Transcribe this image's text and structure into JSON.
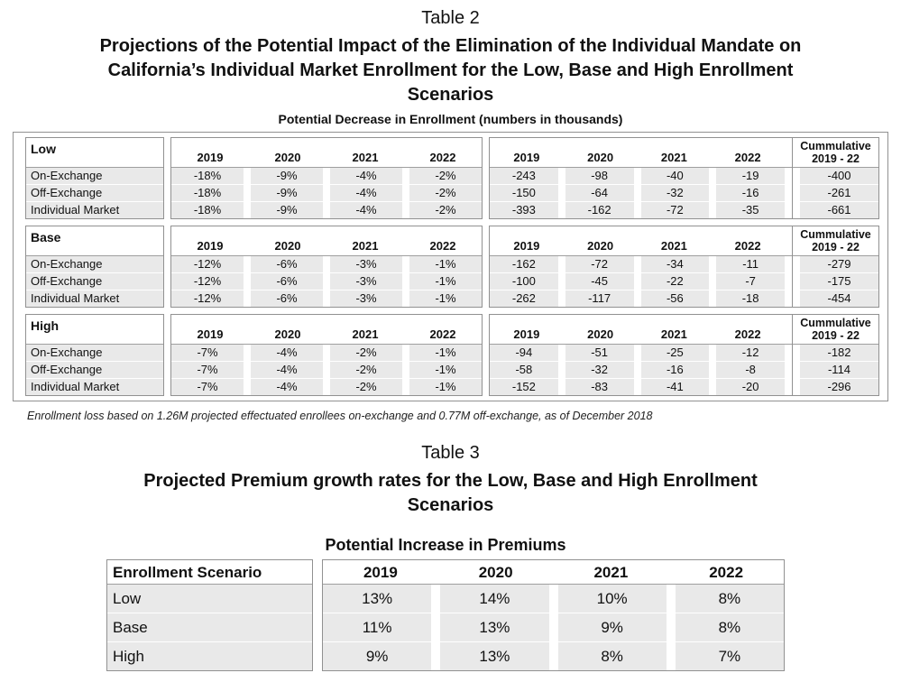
{
  "colors": {
    "row_fill": "#e9e9e9",
    "border": "#919191",
    "text": "#111111"
  },
  "table2": {
    "caption": "Table 2",
    "title_lines": [
      "Projections of the Potential Impact of the Elimination of the Individual Mandate on",
      "California’s Individual Market Enrollment for the Low, Base and High Enrollment",
      "Scenarios"
    ],
    "subtitle": "Potential Decrease in Enrollment (numbers in thousands)",
    "years": [
      "2019",
      "2020",
      "2021",
      "2022"
    ],
    "cumulative_header": {
      "line1": "Cummulative",
      "line2": "2019 - 22"
    },
    "scenarios": [
      {
        "name": "Low",
        "rows": [
          {
            "label": "On-Exchange",
            "pct": [
              "-18%",
              "-9%",
              "-4%",
              "-2%"
            ],
            "num": [
              "-243",
              "-98",
              "-40",
              "-19"
            ],
            "cum": "-400"
          },
          {
            "label": "Off-Exchange",
            "pct": [
              "-18%",
              "-9%",
              "-4%",
              "-2%"
            ],
            "num": [
              "-150",
              "-64",
              "-32",
              "-16"
            ],
            "cum": "-261"
          },
          {
            "label": "Individual Market",
            "pct": [
              "-18%",
              "-9%",
              "-4%",
              "-2%"
            ],
            "num": [
              "-393",
              "-162",
              "-72",
              "-35"
            ],
            "cum": "-661"
          }
        ]
      },
      {
        "name": "Base",
        "rows": [
          {
            "label": "On-Exchange",
            "pct": [
              "-12%",
              "-6%",
              "-3%",
              "-1%"
            ],
            "num": [
              "-162",
              "-72",
              "-34",
              "-11"
            ],
            "cum": "-279"
          },
          {
            "label": "Off-Exchange",
            "pct": [
              "-12%",
              "-6%",
              "-3%",
              "-1%"
            ],
            "num": [
              "-100",
              "-45",
              "-22",
              "-7"
            ],
            "cum": "-175"
          },
          {
            "label": "Individual Market",
            "pct": [
              "-12%",
              "-6%",
              "-3%",
              "-1%"
            ],
            "num": [
              "-262",
              "-117",
              "-56",
              "-18"
            ],
            "cum": "-454"
          }
        ]
      },
      {
        "name": "High",
        "rows": [
          {
            "label": "On-Exchange",
            "pct": [
              "-7%",
              "-4%",
              "-2%",
              "-1%"
            ],
            "num": [
              "-94",
              "-51",
              "-25",
              "-12"
            ],
            "cum": "-182"
          },
          {
            "label": "Off-Exchange",
            "pct": [
              "-7%",
              "-4%",
              "-2%",
              "-1%"
            ],
            "num": [
              "-58",
              "-32",
              "-16",
              "-8"
            ],
            "cum": "-114"
          },
          {
            "label": "Individual Market",
            "pct": [
              "-7%",
              "-4%",
              "-2%",
              "-1%"
            ],
            "num": [
              "-152",
              "-83",
              "-41",
              "-20"
            ],
            "cum": "-296"
          }
        ]
      }
    ],
    "footnote": "Enrollment loss based on 1.26M projected effectuated enrollees on-exchange and 0.77M off-exchange, as of December 2018"
  },
  "table3": {
    "caption": "Table 3",
    "title_lines": [
      "Projected Premium growth rates for the Low, Base and High Enrollment",
      "Scenarios"
    ],
    "subtitle": "Potential Increase in Premiums",
    "label_header": "Enrollment Scenario",
    "years": [
      "2019",
      "2020",
      "2021",
      "2022"
    ],
    "rows": [
      {
        "scenario": "Low",
        "values": [
          "13%",
          "14%",
          "10%",
          "8%"
        ]
      },
      {
        "scenario": "Base",
        "values": [
          "11%",
          "13%",
          "9%",
          "8%"
        ]
      },
      {
        "scenario": "High",
        "values": [
          "9%",
          "13%",
          "8%",
          "7%"
        ]
      }
    ]
  }
}
